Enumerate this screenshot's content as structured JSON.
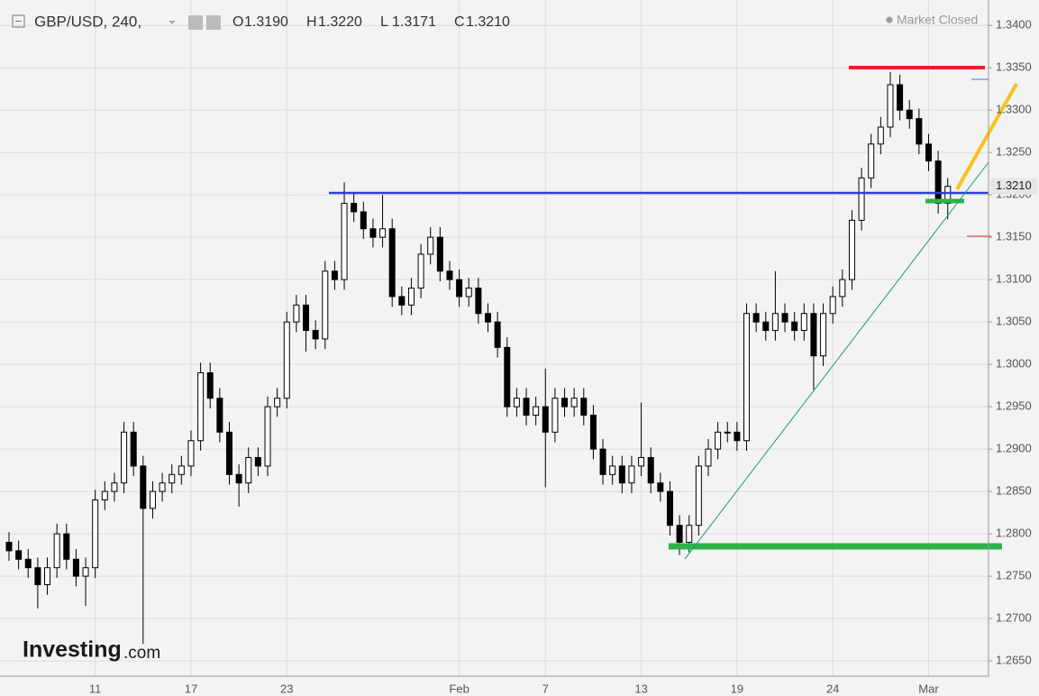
{
  "chart_data": {
    "type": "candlestick",
    "title": "GBP/USD, 240,",
    "quote": [
      {
        "key": "O",
        "value": "1.3190"
      },
      {
        "key": "H",
        "value": "1.3220"
      },
      {
        "key": "L",
        "value": "1.3171"
      },
      {
        "key": "C",
        "value": "1.3210"
      }
    ],
    "status": "Market Closed",
    "brand": [
      "Investing",
      ".com"
    ],
    "up_color": "#ffffff",
    "down_color": "#000000",
    "grid": true,
    "ylim": [
      1.2632,
      1.343
    ],
    "yticks": [
      {
        "value": 1.265,
        "label": "1.2650"
      },
      {
        "value": 1.27,
        "label": "1.2700"
      },
      {
        "value": 1.275,
        "label": "1.2750"
      },
      {
        "value": 1.28,
        "label": "1.2800"
      },
      {
        "value": 1.285,
        "label": "1.2850"
      },
      {
        "value": 1.29,
        "label": "1.2900"
      },
      {
        "value": 1.295,
        "label": "1.2950"
      },
      {
        "value": 1.3,
        "label": "1.3000"
      },
      {
        "value": 1.305,
        "label": "1.3050"
      },
      {
        "value": 1.31,
        "label": "1.3100"
      },
      {
        "value": 1.315,
        "label": "1.3150"
      },
      {
        "value": 1.32,
        "label": "1.3200"
      },
      {
        "value": 1.325,
        "label": "1.3250"
      },
      {
        "value": 1.33,
        "label": "1.3300"
      },
      {
        "value": 1.335,
        "label": "1.3350"
      },
      {
        "value": 1.34,
        "label": "1.3400"
      }
    ],
    "last_price": {
      "value": 1.321,
      "label": "1.3210"
    },
    "categories": [
      null,
      null,
      null,
      null,
      null,
      null,
      null,
      null,
      null,
      "11",
      null,
      null,
      null,
      null,
      null,
      null,
      null,
      null,
      null,
      "17",
      null,
      null,
      null,
      null,
      null,
      null,
      null,
      null,
      null,
      "23",
      null,
      null,
      null,
      null,
      null,
      null,
      null,
      null,
      null,
      null,
      null,
      null,
      null,
      null,
      null,
      null,
      null,
      "Feb",
      null,
      null,
      null,
      null,
      null,
      null,
      null,
      null,
      "7",
      null,
      null,
      null,
      null,
      null,
      null,
      null,
      null,
      null,
      "13",
      null,
      null,
      null,
      null,
      null,
      null,
      null,
      null,
      null,
      "19",
      null,
      null,
      null,
      null,
      null,
      null,
      null,
      null,
      null,
      "24",
      null,
      null,
      null,
      null,
      null,
      null,
      null,
      null,
      null,
      "Mar",
      null,
      null
    ],
    "open": [
      1.279,
      1.278,
      1.277,
      1.276,
      1.274,
      1.276,
      1.28,
      1.277,
      1.275,
      1.276,
      1.284,
      1.285,
      1.286,
      1.292,
      1.288,
      1.283,
      1.285,
      1.286,
      1.287,
      1.288,
      1.291,
      1.299,
      1.296,
      1.292,
      1.287,
      1.286,
      1.289,
      1.288,
      1.295,
      1.296,
      1.305,
      1.307,
      1.304,
      1.303,
      1.311,
      1.31,
      1.319,
      1.318,
      1.316,
      1.315,
      1.316,
      1.308,
      1.307,
      1.309,
      1.313,
      1.315,
      1.311,
      1.31,
      1.308,
      1.309,
      1.306,
      1.305,
      1.302,
      1.295,
      1.296,
      1.294,
      1.295,
      1.292,
      1.296,
      1.295,
      1.296,
      1.294,
      1.29,
      1.287,
      1.288,
      1.286,
      1.288,
      1.289,
      1.286,
      1.285,
      1.281,
      1.279,
      1.281,
      1.288,
      1.29,
      1.292,
      1.292,
      1.291,
      1.306,
      1.305,
      1.304,
      1.306,
      1.305,
      1.304,
      1.306,
      1.301,
      1.306,
      1.308,
      1.31,
      1.317,
      1.322,
      1.326,
      1.328,
      1.333,
      1.33,
      1.329,
      1.326,
      1.324,
      1.319
    ],
    "high": [
      1.2802,
      1.2792,
      1.2782,
      1.2772,
      1.2772,
      1.2812,
      1.2812,
      1.2782,
      1.2772,
      1.2852,
      1.2862,
      1.2872,
      1.2932,
      1.2932,
      1.2892,
      1.2862,
      1.2872,
      1.2882,
      1.2892,
      1.2922,
      1.3002,
      1.3002,
      1.2972,
      1.2932,
      1.2882,
      1.2902,
      1.2902,
      1.2962,
      1.2972,
      1.3062,
      1.3082,
      1.3082,
      1.3052,
      1.3122,
      1.3122,
      1.3215,
      1.3202,
      1.3192,
      1.3172,
      1.32,
      1.3172,
      1.3092,
      1.3102,
      1.3142,
      1.3162,
      1.3162,
      1.3122,
      1.3112,
      1.3102,
      1.3102,
      1.3072,
      1.3062,
      1.3032,
      1.2972,
      1.2972,
      1.2962,
      1.2995,
      1.2972,
      1.2972,
      1.2972,
      1.2972,
      1.2952,
      1.2912,
      1.2892,
      1.2892,
      1.2892,
      1.2955,
      1.2902,
      1.2872,
      1.2862,
      1.2822,
      1.2822,
      1.2892,
      1.2912,
      1.2932,
      1.2932,
      1.2932,
      1.3072,
      1.3072,
      1.3062,
      1.311,
      1.3072,
      1.3062,
      1.3072,
      1.3072,
      1.3072,
      1.3092,
      1.3112,
      1.3182,
      1.3232,
      1.3272,
      1.3292,
      1.3345,
      1.3342,
      1.3312,
      1.3302,
      1.3272,
      1.3252,
      1.322
    ],
    "low": [
      1.2768,
      1.2758,
      1.2748,
      1.2712,
      1.2728,
      1.2748,
      1.2758,
      1.2738,
      1.2715,
      1.2748,
      1.2828,
      1.2838,
      1.2848,
      1.2868,
      1.267,
      1.2818,
      1.2838,
      1.2848,
      1.2858,
      1.2868,
      1.2898,
      1.2948,
      1.2908,
      1.2858,
      1.2832,
      1.2848,
      1.2868,
      1.2868,
      1.2938,
      1.2948,
      1.3038,
      1.3015,
      1.3018,
      1.3018,
      1.3088,
      1.3088,
      1.3168,
      1.3148,
      1.3138,
      1.3138,
      1.3068,
      1.3058,
      1.3058,
      1.3078,
      1.3118,
      1.3098,
      1.3088,
      1.3068,
      1.3068,
      1.3048,
      1.3038,
      1.3008,
      1.2938,
      1.2938,
      1.2928,
      1.2928,
      1.2855,
      1.2908,
      1.2938,
      1.2938,
      1.2928,
      1.2888,
      1.2858,
      1.2858,
      1.2848,
      1.2848,
      1.2868,
      1.2848,
      1.2838,
      1.2798,
      1.2775,
      1.2778,
      1.2798,
      1.2868,
      1.2888,
      1.2908,
      1.2898,
      1.2898,
      1.3038,
      1.3028,
      1.3028,
      1.3038,
      1.3028,
      1.3028,
      1.297,
      1.2998,
      1.3048,
      1.3068,
      1.3088,
      1.3158,
      1.3208,
      1.3248,
      1.3268,
      1.3288,
      1.3278,
      1.3248,
      1.3228,
      1.3178,
      1.3171
    ],
    "close": [
      1.278,
      1.277,
      1.276,
      1.274,
      1.276,
      1.28,
      1.277,
      1.275,
      1.276,
      1.284,
      1.285,
      1.286,
      1.292,
      1.288,
      1.283,
      1.285,
      1.286,
      1.287,
      1.288,
      1.291,
      1.299,
      1.296,
      1.292,
      1.287,
      1.286,
      1.289,
      1.288,
      1.295,
      1.296,
      1.305,
      1.307,
      1.304,
      1.303,
      1.311,
      1.31,
      1.319,
      1.318,
      1.316,
      1.315,
      1.316,
      1.308,
      1.307,
      1.309,
      1.313,
      1.315,
      1.311,
      1.31,
      1.308,
      1.309,
      1.306,
      1.305,
      1.302,
      1.295,
      1.296,
      1.294,
      1.295,
      1.292,
      1.296,
      1.295,
      1.296,
      1.294,
      1.29,
      1.287,
      1.288,
      1.286,
      1.288,
      1.289,
      1.286,
      1.285,
      1.281,
      1.279,
      1.281,
      1.288,
      1.29,
      1.292,
      1.292,
      1.291,
      1.306,
      1.305,
      1.304,
      1.306,
      1.305,
      1.304,
      1.306,
      1.301,
      1.306,
      1.308,
      1.31,
      1.317,
      1.322,
      1.326,
      1.328,
      1.333,
      1.33,
      1.329,
      1.326,
      1.324,
      1.319,
      1.321
    ]
  }
}
